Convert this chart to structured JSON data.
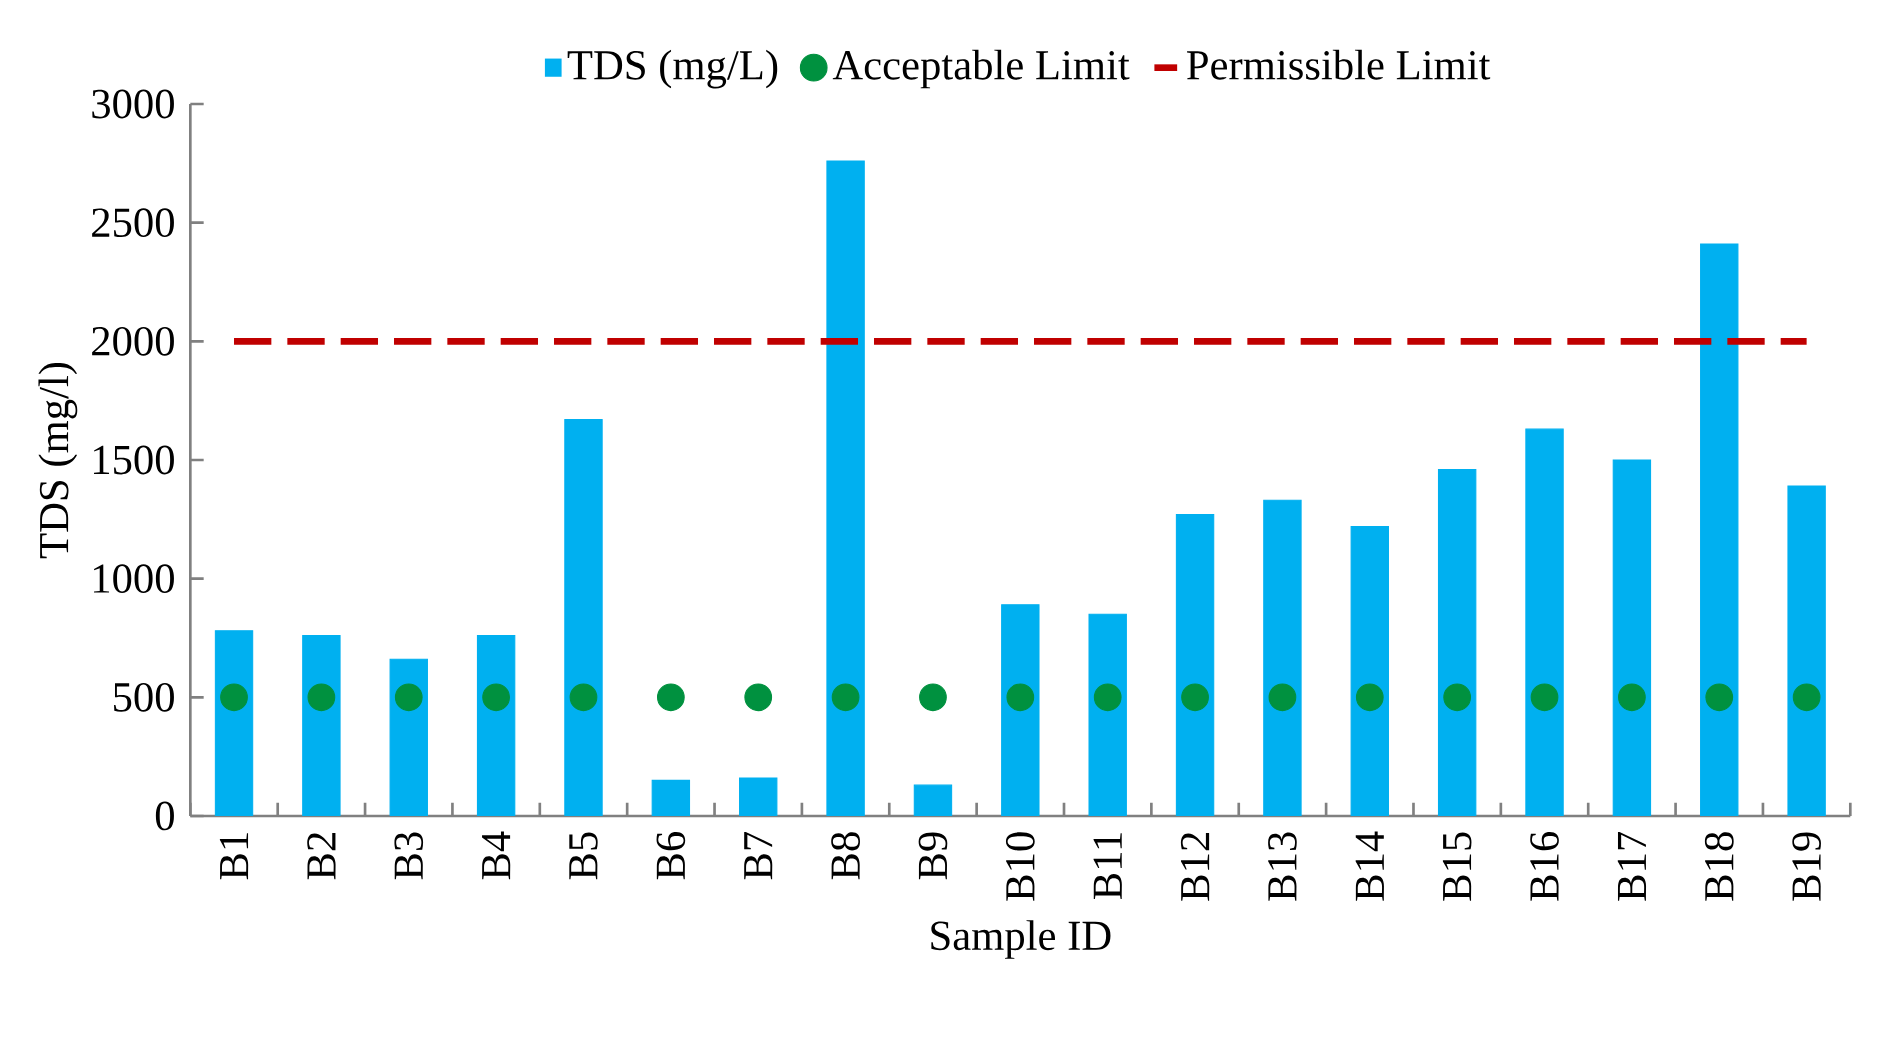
{
  "chart_data": {
    "type": "bar",
    "xlabel": "Sample ID",
    "ylabel": "TDS (mg/l)",
    "categories": [
      "B1",
      "B2",
      "B3",
      "B4",
      "B5",
      "B6",
      "B7",
      "B8",
      "B9",
      "B10",
      "B11",
      "B12",
      "B13",
      "B14",
      "B15",
      "B16",
      "B17",
      "B18",
      "B19"
    ],
    "series": [
      {
        "name": "TDS (mg/L)",
        "color": "#00b0f0",
        "values": [
          780,
          760,
          660,
          760,
          1670,
          150,
          160,
          2760,
          130,
          890,
          850,
          1270,
          1330,
          1220,
          1460,
          1630,
          1500,
          2410,
          1390
        ]
      },
      {
        "name": "Acceptable Limit",
        "type": "scatter",
        "marker": "circle",
        "color": "#00913f",
        "values": [
          500,
          500,
          500,
          500,
          500,
          500,
          500,
          500,
          500,
          500,
          500,
          500,
          500,
          500,
          500,
          500,
          500,
          500,
          500
        ]
      },
      {
        "name": "Permissible Limit",
        "type": "line",
        "line_style": "dashed",
        "marker": "none",
        "color": "#c00000",
        "values": [
          2000,
          2000,
          2000,
          2000,
          2000,
          2000,
          2000,
          2000,
          2000,
          2000,
          2000,
          2000,
          2000,
          2000,
          2000,
          2000,
          2000,
          2000,
          2000
        ]
      }
    ],
    "ylim": [
      0,
      3000
    ],
    "yticks": [
      0,
      500,
      1000,
      1500,
      2000,
      2500,
      3000
    ],
    "grid": false,
    "legend": "top"
  }
}
